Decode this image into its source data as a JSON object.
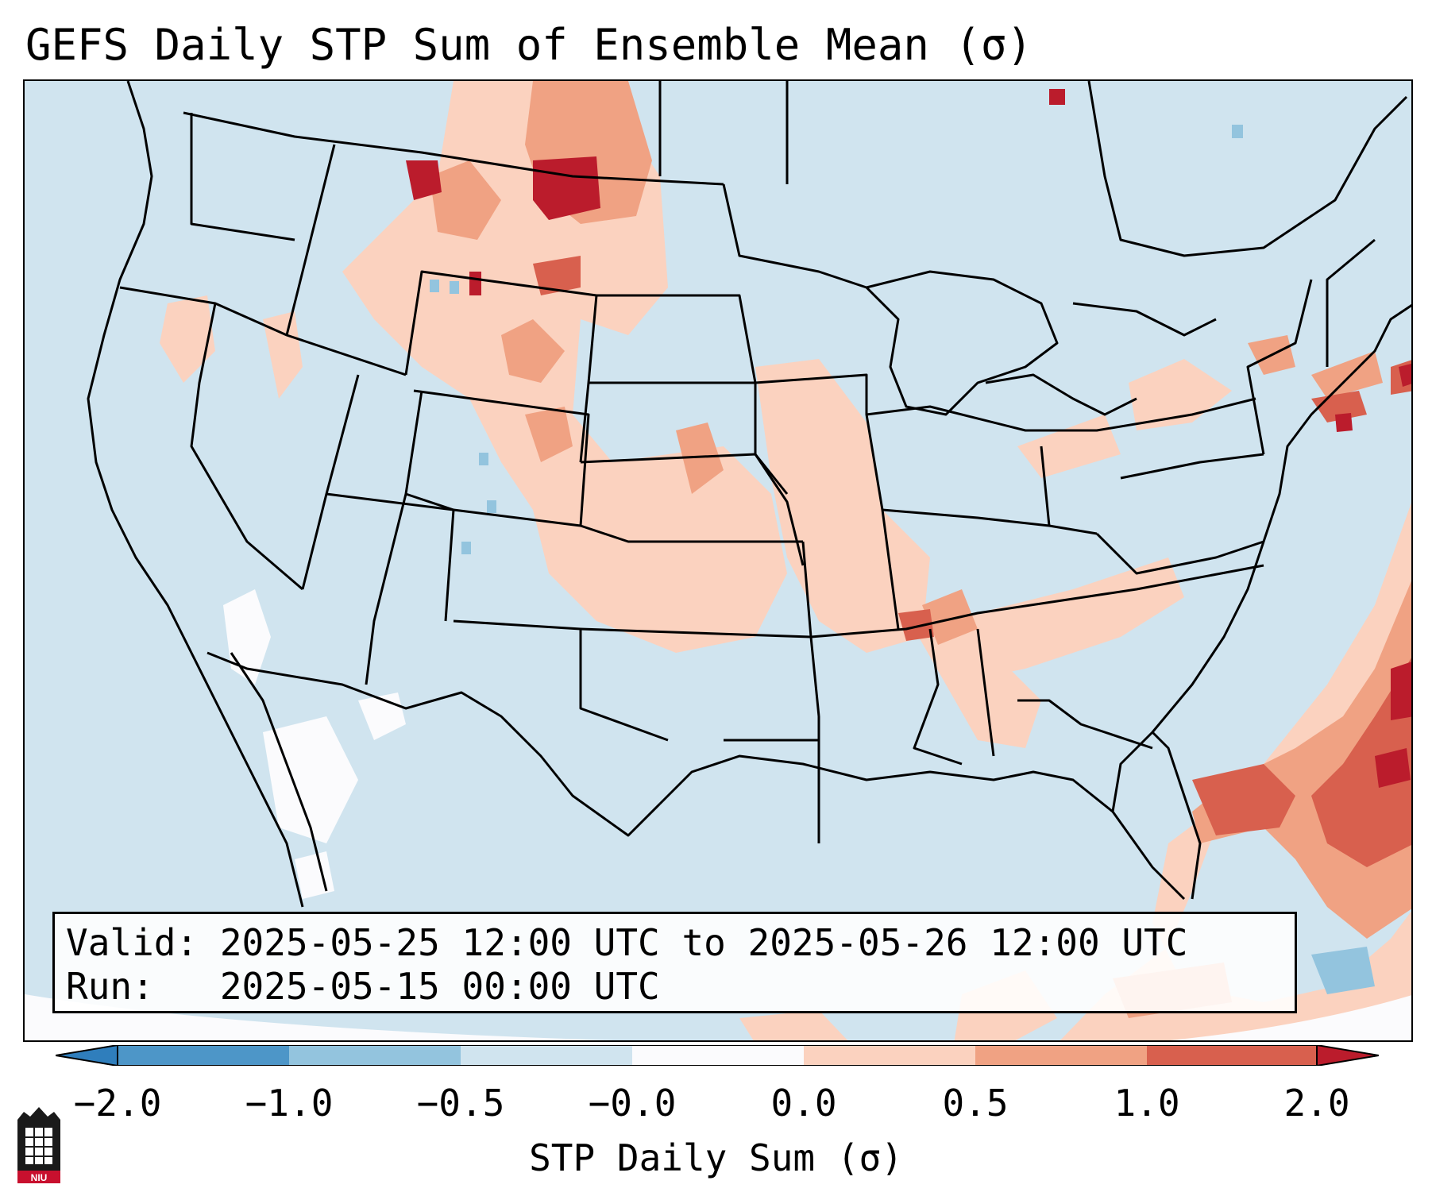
{
  "title": "GEFS Daily STP Sum of Ensemble Mean (σ)",
  "info_box": {
    "valid_line": "Valid: 2025-05-25 12:00 UTC to 2025-05-26 12:00 UTC",
    "run_line": "Run:   2025-05-15 00:00 UTC"
  },
  "colorbar": {
    "label": "STP Daily Sum (σ)",
    "ticks": [
      "−2.0",
      "−1.0",
      "−0.5",
      "−0.0",
      "0.0",
      "0.5",
      "1.0",
      "2.0"
    ],
    "colors": [
      "#2f7ebc",
      "#4d96c8",
      "#93c4de",
      "#d0e4ef",
      "#fbfbfd",
      "#fbd2bf",
      "#f0a283",
      "#d8604e",
      "#bb1c2c"
    ]
  },
  "map": {
    "background_color": "#d0e4ef",
    "outline_color": "#000000"
  },
  "logo": {
    "text": "NIU"
  }
}
